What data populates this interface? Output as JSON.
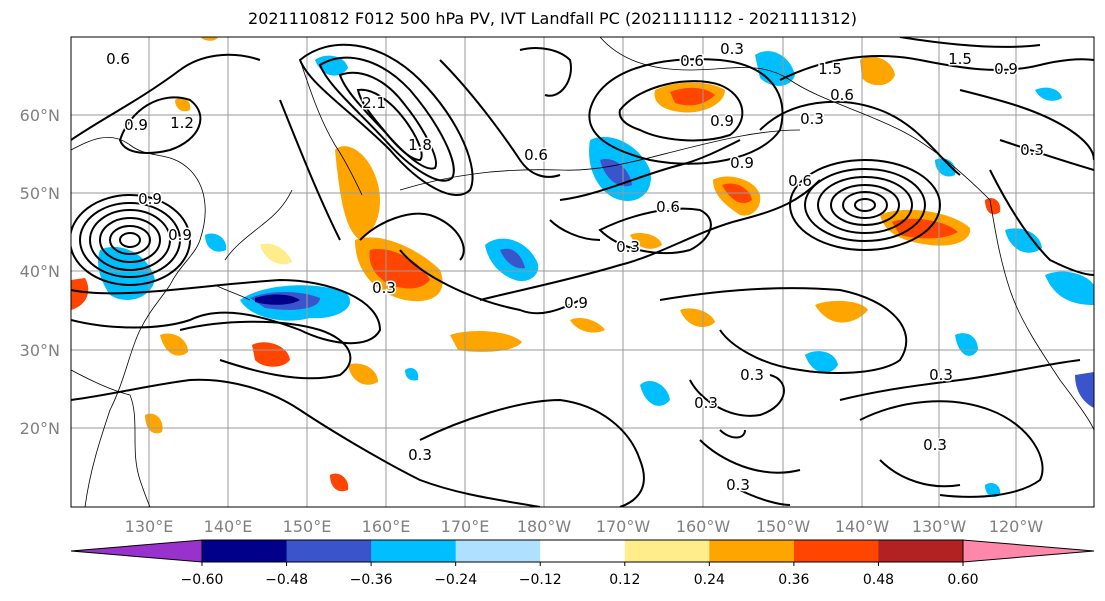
{
  "title": "2021110812 F012 500 hPa PV, IVT Landfall PC (2021111112 - 2021111312)",
  "lat_labels": [
    "60°N",
    "50°N",
    "40°N",
    "30°N",
    "20°N"
  ],
  "lon_labels": [
    "130°E",
    "140°E",
    "150°E",
    "160°E",
    "170°E",
    "180°W",
    "170°W",
    "160°W",
    "150°W",
    "140°W",
    "130°W",
    "120°W"
  ],
  "contour_labels": [
    "0.6",
    "0.9",
    "1.2",
    "0.9",
    "0.9",
    "0.3",
    "0.3",
    "0.6",
    "0.9",
    "0.6",
    "0.9",
    "0.6",
    "0.3",
    "1.5",
    "1.5",
    "0.9",
    "0.6",
    "0.3",
    "0.9",
    "0.3",
    "0.6",
    "0.3",
    "0.3",
    "0.3",
    "0.3",
    "0.3",
    "0.3",
    "2.1",
    "1.8"
  ],
  "colorbar": {
    "ticks": [
      "−0.60",
      "−0.48",
      "−0.36",
      "−0.24",
      "−0.12",
      "0.12",
      "0.24",
      "0.36",
      "0.48",
      "0.60"
    ],
    "colors": [
      "#9932cc",
      "#00008b",
      "#3a55cc",
      "#00bfff",
      "#b0e0ff",
      "#ffffff",
      "#ffec8b",
      "#ffa500",
      "#ff4500",
      "#b22222",
      "#ff88aa"
    ]
  },
  "colors": {
    "neg_strong": "#00008b",
    "neg_med": "#3a55cc",
    "neg_light": "#00bfff",
    "neg_pale": "#b0e0ff",
    "pos_pale": "#ffec8b",
    "pos_light": "#ffa500",
    "pos_med": "#ff4500",
    "pos_strong": "#b22222"
  }
}
